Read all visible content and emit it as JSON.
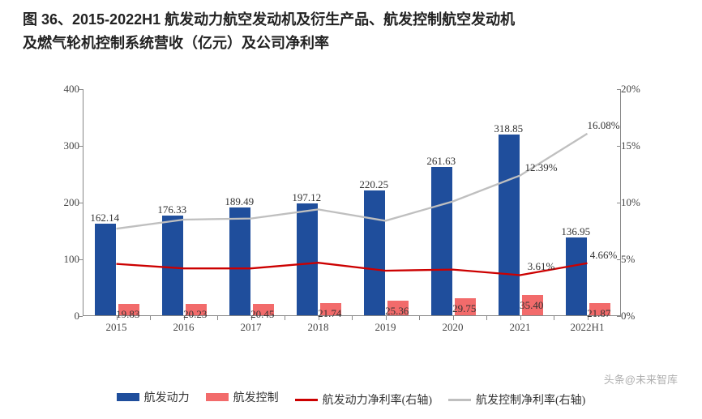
{
  "title_line1": "图 36、2015-2022H1 航发动力航空发动机及衍生产品、航发控制航空发动机",
  "title_line2": "及燃气轮机控制系统营收（亿元）及公司净利率",
  "watermark": "头条@未来智库",
  "chart": {
    "type": "bar+line-dual-axis",
    "categories": [
      "2015",
      "2016",
      "2017",
      "2018",
      "2019",
      "2020",
      "2021",
      "2022H1"
    ],
    "series_bar1": {
      "name": "航发动力",
      "color": "#1f4e9c",
      "values": [
        162.14,
        176.33,
        189.49,
        197.12,
        220.25,
        261.63,
        318.85,
        136.95
      ],
      "label_color": "#333"
    },
    "series_bar2": {
      "name": "航发控制",
      "color": "#f26b6b",
      "values": [
        19.83,
        20.23,
        20.45,
        21.74,
        25.36,
        29.75,
        35.4,
        21.87
      ],
      "label_color": "#333"
    },
    "series_line1": {
      "name": "航发动力净利率(右轴)",
      "color": "#cc0000",
      "width": 2.3,
      "values_pct": [
        4.6,
        4.2,
        4.2,
        4.7,
        4.0,
        4.1,
        3.61,
        4.66
      ],
      "labels": {
        "6": "3.61%",
        "7": "4.66%"
      }
    },
    "series_line2": {
      "name": "航发控制净利率(右轴)",
      "color": "#bfbfbf",
      "width": 2.3,
      "values_pct": [
        7.7,
        8.5,
        8.6,
        9.4,
        8.4,
        10.1,
        12.39,
        16.08
      ],
      "labels": {
        "6": "12.39%",
        "7": "16.08%"
      }
    },
    "y_left": {
      "min": 0,
      "max": 400,
      "step": 100
    },
    "y_right": {
      "min": 0,
      "max": 20,
      "step": 5,
      "suffix": "%"
    },
    "bar_group_gap": 0.18,
    "bar_width": 0.32,
    "background": "#ffffff",
    "axis_color": "#888888",
    "font_family": "SimSun"
  },
  "legend": {
    "items": [
      {
        "key": "bar1",
        "label": "航发动力",
        "type": "bar",
        "color": "#1f4e9c"
      },
      {
        "key": "bar2",
        "label": "航发控制",
        "type": "bar",
        "color": "#f26b6b"
      },
      {
        "key": "line1",
        "label": "航发动力净利率(右轴)",
        "type": "line",
        "color": "#cc0000"
      },
      {
        "key": "line2",
        "label": "航发控制净利率(右轴)",
        "type": "line",
        "color": "#bfbfbf"
      }
    ]
  }
}
